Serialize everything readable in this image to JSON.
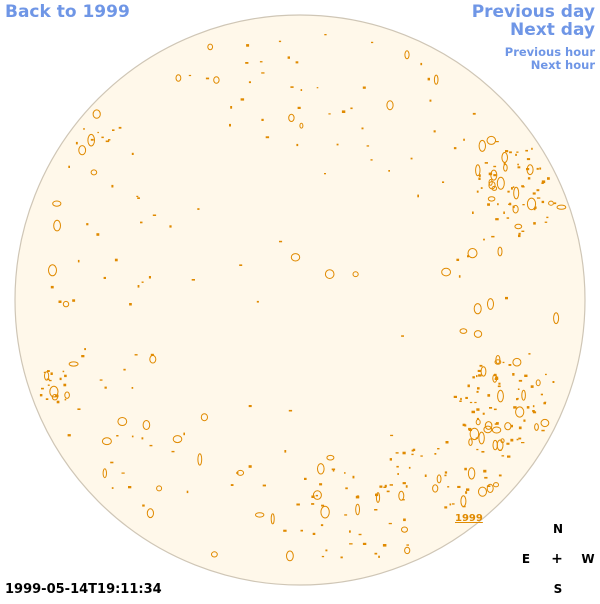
{
  "nav": {
    "back": "Back to 1999",
    "previous_day": "Previous day",
    "next_day": "Next day",
    "previous_hour": "Previous hour",
    "next_hour": "Next hour"
  },
  "timestamp": "1999-05-14T19:11:34",
  "year_link": "1999",
  "compass": {
    "north": "N",
    "east": "E",
    "center": "+",
    "west": "W",
    "south": "S"
  },
  "colors": {
    "link": "#6f96e6",
    "disk_fill": "#fff8ea",
    "disk_edge": "#cfc6b6",
    "contour": "#e08a00"
  }
}
